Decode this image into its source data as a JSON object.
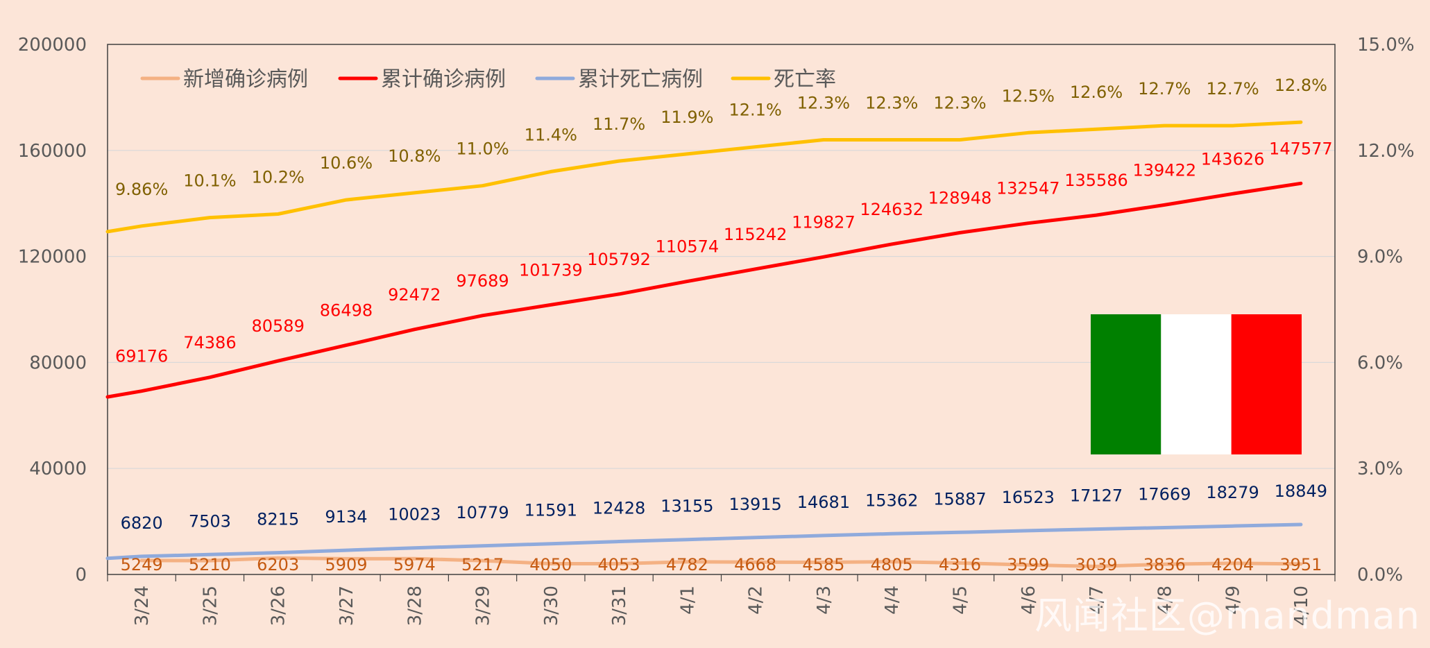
{
  "watermark": "风闻社区@mandman",
  "chart_data": {
    "type": "line",
    "categories": [
      "3/24",
      "3/25",
      "3/26",
      "3/27",
      "3/28",
      "3/29",
      "3/30",
      "3/31",
      "4/1",
      "4/2",
      "4/3",
      "4/4",
      "4/5",
      "4/6",
      "4/7",
      "4/8",
      "4/9",
      "4/10"
    ],
    "y_left": {
      "min": 0,
      "max": 200000,
      "ticks": [
        "0",
        "40000",
        "80000",
        "120000",
        "160000",
        "200000"
      ]
    },
    "y_right": {
      "min": 0,
      "max": 15,
      "ticks": [
        "0.0%",
        "3.0%",
        "6.0%",
        "9.0%",
        "12.0%",
        "15.0%"
      ]
    },
    "grid": true,
    "legend_position": "top-left",
    "series": [
      {
        "name": "新增确诊病例",
        "color": "#f4b183",
        "label_color": "#c55a11",
        "axis": "left",
        "values": [
          5249,
          5210,
          6203,
          5909,
          5974,
          5217,
          4050,
          4053,
          4782,
          4668,
          4585,
          4805,
          4316,
          3599,
          3039,
          3836,
          4204,
          3951
        ],
        "labels": [
          "5249",
          "5210",
          "6203",
          "5909",
          "5974",
          "5217",
          "4050",
          "4053",
          "4782",
          "4668",
          "4585",
          "4805",
          "4316",
          "3599",
          "3039",
          "3836",
          "4204",
          "3951"
        ]
      },
      {
        "name": "累计确诊病例",
        "color": "#ff0000",
        "label_color": "#ff0000",
        "axis": "left",
        "start_value": 67000,
        "values": [
          69176,
          74386,
          80589,
          86498,
          92472,
          97689,
          101739,
          105792,
          110574,
          115242,
          119827,
          124632,
          128948,
          132547,
          135586,
          139422,
          143626,
          147577
        ],
        "labels": [
          "69176",
          "74386",
          "80589",
          "86498",
          "92472",
          "97689",
          "101739",
          "105792",
          "110574",
          "115242",
          "119827",
          "124632",
          "128948",
          "132547",
          "135586",
          "139422",
          "143626",
          "147577"
        ]
      },
      {
        "name": "累计死亡病例",
        "color": "#8faadc",
        "label_color": "#002060",
        "axis": "left",
        "start_value": 6100,
        "values": [
          6820,
          7503,
          8215,
          9134,
          10023,
          10779,
          11591,
          12428,
          13155,
          13915,
          14681,
          15362,
          15887,
          16523,
          17127,
          17669,
          18279,
          18849
        ],
        "labels": [
          "6820",
          "7503",
          "8215",
          "9134",
          "10023",
          "10779",
          "11591",
          "12428",
          "13155",
          "13915",
          "14681",
          "15362",
          "15887",
          "16523",
          "17127",
          "17669",
          "18279",
          "18849"
        ]
      },
      {
        "name": "死亡率",
        "color": "#ffc000",
        "label_color": "#7f6000",
        "axis": "right",
        "start_value": 9.7,
        "values": [
          9.86,
          10.1,
          10.2,
          10.6,
          10.8,
          11.0,
          11.4,
          11.7,
          11.9,
          12.1,
          12.3,
          12.3,
          12.3,
          12.5,
          12.6,
          12.7,
          12.7,
          12.8
        ],
        "labels": [
          "9.86%",
          "10.1%",
          "10.2%",
          "10.6%",
          "10.8%",
          "11.0%",
          "11.4%",
          "11.7%",
          "11.9%",
          "12.1%",
          "12.3%",
          "12.3%",
          "12.3%",
          "12.5%",
          "12.6%",
          "12.7%",
          "12.7%",
          "12.8%"
        ]
      }
    ]
  },
  "flag": {
    "name": "italy-flag",
    "colors": [
      "#008000",
      "#ffffff",
      "#ff0000"
    ]
  }
}
